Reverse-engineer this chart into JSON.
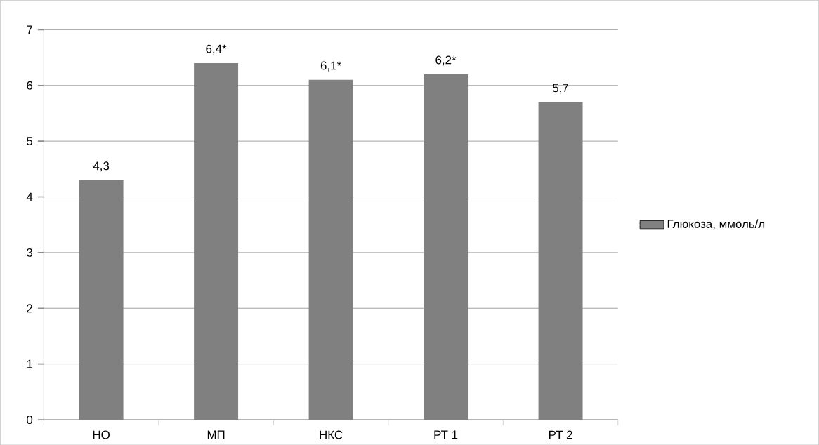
{
  "chart_data": {
    "type": "bar",
    "categories": [
      "НО",
      "МП",
      "НКС",
      "РТ 1",
      "РТ 2"
    ],
    "series": [
      {
        "name": "Глюкоза, ммоль/л",
        "color": "#808080",
        "values": [
          4.3,
          6.4,
          6.1,
          6.2,
          5.7
        ],
        "value_labels": [
          "4,3",
          "6,4*",
          "6,1*",
          "6,2*",
          "5,7"
        ]
      }
    ],
    "ylim": [
      0,
      7
    ],
    "yticks": [
      0,
      1,
      2,
      3,
      4,
      5,
      6,
      7
    ],
    "grid": "y",
    "legend": "right"
  }
}
